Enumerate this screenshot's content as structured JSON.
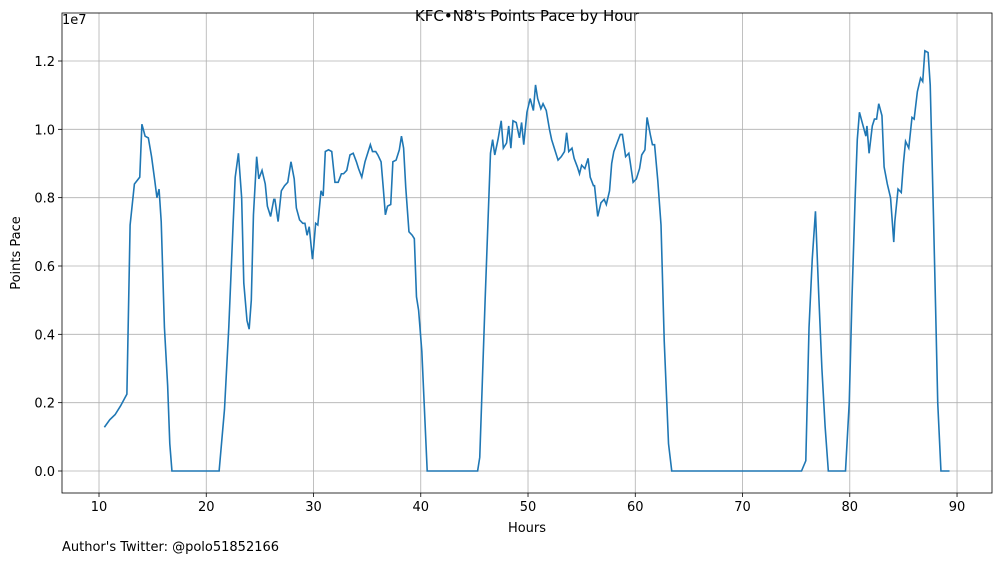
{
  "chart_data": {
    "type": "line",
    "title": "KFC•N8's Points Pace by Hour",
    "x_label": "Hours",
    "y_label": "Points Pace",
    "y_offset_label": "1e7",
    "footnote": "Author's Twitter: @polo51852166",
    "grid": true,
    "xlim": [
      6.55,
      93.26
    ],
    "ylim": [
      -0.0644,
      1.3405
    ],
    "xticks": [
      10,
      20,
      30,
      40,
      50,
      60,
      70,
      80,
      90
    ],
    "yticks": [
      {
        "value": 0,
        "label": "0.0"
      },
      0.2,
      0.4,
      0.6,
      0.8,
      {
        "value": 1,
        "label": "1.0"
      },
      1.2
    ],
    "series": [
      {
        "name": "Points Pace",
        "color": "#1f77b4",
        "x": [
          10.5,
          11,
          11.5,
          12,
          12.6,
          12.9,
          13.3,
          13.8,
          14.0,
          14.3,
          14.6,
          14.9,
          15.2,
          15.4,
          15.6,
          15.8,
          16.1,
          16.4,
          16.6,
          16.8,
          21.2,
          21.7,
          22.1,
          22.5,
          22.7,
          23.0,
          23.3,
          23.5,
          23.8,
          24.0,
          24.2,
          24.4,
          24.7,
          24.9,
          25.2,
          25.5,
          25.7,
          26.0,
          26.3,
          26.4,
          26.7,
          27.0,
          27.3,
          27.6,
          27.9,
          28.2,
          28.4,
          28.7,
          29.0,
          29.2,
          29.4,
          29.6,
          29.9,
          30.0,
          30.2,
          30.4,
          30.7,
          30.9,
          31.1,
          31.4,
          31.7,
          32.0,
          32.3,
          32.6,
          32.8,
          33.1,
          33.4,
          33.7,
          34.0,
          34.2,
          34.5,
          34.8,
          35.1,
          35.3,
          35.5,
          35.8,
          36.0,
          36.3,
          36.5,
          36.7,
          36.9,
          37.2,
          37.4,
          37.7,
          38.0,
          38.2,
          38.4,
          38.6,
          38.9,
          39.2,
          39.4,
          39.6,
          39.8,
          40.1,
          40.6,
          45.3,
          45.5,
          46.0,
          46.5,
          46.7,
          46.9,
          47.2,
          47.5,
          47.7,
          48.0,
          48.2,
          48.4,
          48.6,
          48.9,
          49.2,
          49.4,
          49.6,
          49.9,
          50.2,
          50.5,
          50.7,
          50.9,
          51.2,
          51.4,
          51.7,
          52.0,
          52.2,
          52.5,
          52.8,
          53.1,
          53.4,
          53.6,
          53.8,
          54.1,
          54.3,
          54.6,
          54.8,
          55.0,
          55.3,
          55.6,
          55.8,
          56.1,
          56.2,
          56.5,
          56.8,
          57.1,
          57.3,
          57.6,
          57.8,
          58.0,
          58.3,
          58.6,
          58.8,
          59.1,
          59.4,
          59.5,
          59.8,
          60.1,
          60.4,
          60.6,
          60.9,
          61.1,
          61.4,
          61.6,
          61.8,
          62.1,
          62.4,
          62.7,
          63.1,
          63.4,
          75.5,
          75.9,
          76.2,
          76.5,
          76.8,
          77.1,
          77.4,
          77.7,
          78.0,
          79.6,
          79.95,
          80.2,
          80.5,
          80.7,
          80.9,
          81.2,
          81.5,
          81.6,
          81.8,
          82.1,
          82.3,
          82.5,
          82.7,
          83.0,
          83.2,
          83.5,
          83.8,
          84.1,
          84.2,
          84.5,
          84.8,
          85.0,
          85.2,
          85.5,
          85.8,
          86.0,
          86.3,
          86.6,
          86.8,
          87.0,
          87.3,
          87.5,
          87.8,
          88.0,
          88.2,
          88.5,
          89.3
        ],
        "values": [
          0.128,
          0.15,
          0.165,
          0.19,
          0.225,
          0.72,
          0.84,
          0.86,
          1.015,
          0.98,
          0.975,
          0.92,
          0.85,
          0.8,
          0.825,
          0.73,
          0.42,
          0.25,
          0.08,
          0,
          0,
          0.18,
          0.42,
          0.72,
          0.86,
          0.93,
          0.8,
          0.55,
          0.44,
          0.415,
          0.5,
          0.75,
          0.92,
          0.855,
          0.88,
          0.84,
          0.775,
          0.745,
          0.795,
          0.795,
          0.73,
          0.82,
          0.835,
          0.845,
          0.905,
          0.855,
          0.77,
          0.735,
          0.725,
          0.725,
          0.69,
          0.715,
          0.62,
          0.65,
          0.725,
          0.72,
          0.82,
          0.805,
          0.935,
          0.94,
          0.935,
          0.845,
          0.845,
          0.87,
          0.87,
          0.88,
          0.925,
          0.93,
          0.905,
          0.885,
          0.86,
          0.905,
          0.935,
          0.955,
          0.935,
          0.935,
          0.925,
          0.905,
          0.83,
          0.75,
          0.775,
          0.78,
          0.905,
          0.91,
          0.94,
          0.98,
          0.945,
          0.83,
          0.7,
          0.69,
          0.68,
          0.51,
          0.47,
          0.35,
          0,
          0,
          0.04,
          0.5,
          0.93,
          0.97,
          0.925,
          0.97,
          1.025,
          0.945,
          0.96,
          1.01,
          0.945,
          1.025,
          1.02,
          0.975,
          1.02,
          0.955,
          1.05,
          1.09,
          1.055,
          1.13,
          1.09,
          1.06,
          1.075,
          1.055,
          1.0,
          0.97,
          0.94,
          0.91,
          0.92,
          0.935,
          0.99,
          0.935,
          0.945,
          0.915,
          0.89,
          0.87,
          0.895,
          0.885,
          0.915,
          0.86,
          0.835,
          0.835,
          0.745,
          0.785,
          0.795,
          0.78,
          0.82,
          0.9,
          0.935,
          0.96,
          0.985,
          0.985,
          0.92,
          0.93,
          0.91,
          0.845,
          0.855,
          0.885,
          0.925,
          0.94,
          1.035,
          0.985,
          0.955,
          0.955,
          0.85,
          0.72,
          0.38,
          0.08,
          0,
          0,
          0.03,
          0.42,
          0.62,
          0.76,
          0.52,
          0.3,
          0.13,
          0,
          0,
          0.2,
          0.5,
          0.8,
          0.97,
          1.05,
          1.015,
          0.98,
          1.01,
          0.93,
          1.01,
          1.03,
          1.03,
          1.075,
          1.04,
          0.89,
          0.84,
          0.8,
          0.67,
          0.73,
          0.825,
          0.815,
          0.9,
          0.965,
          0.945,
          1.035,
          1.03,
          1.11,
          1.15,
          1.14,
          1.23,
          1.225,
          1.13,
          0.75,
          0.48,
          0.2,
          0,
          0
        ]
      }
    ]
  }
}
